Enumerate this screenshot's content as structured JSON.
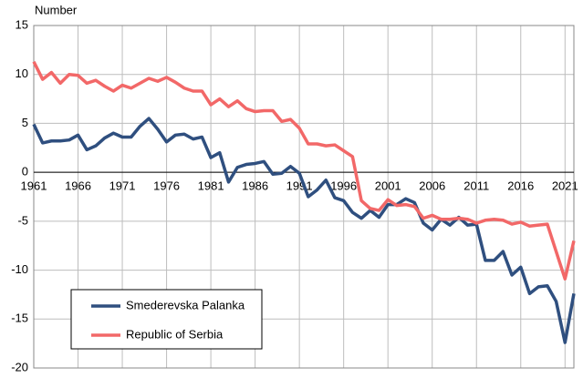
{
  "chart_data": {
    "type": "line",
    "y_label": "Number",
    "x": [
      1961,
      1962,
      1963,
      1964,
      1965,
      1966,
      1967,
      1968,
      1969,
      1970,
      1971,
      1972,
      1973,
      1974,
      1975,
      1976,
      1977,
      1978,
      1979,
      1980,
      1981,
      1982,
      1983,
      1984,
      1985,
      1986,
      1987,
      1988,
      1989,
      1990,
      1991,
      1992,
      1993,
      1994,
      1995,
      1996,
      1997,
      1998,
      1999,
      2000,
      2001,
      2002,
      2003,
      2004,
      2005,
      2006,
      2007,
      2008,
      2009,
      2010,
      2011,
      2012,
      2013,
      2014,
      2015,
      2016,
      2017,
      2018,
      2019,
      2020,
      2021,
      2022
    ],
    "series": [
      {
        "name": "Smederevska Palanka",
        "color": "#2f4f7f",
        "values": [
          4.9,
          3.0,
          3.2,
          3.2,
          3.3,
          3.8,
          2.3,
          2.7,
          3.5,
          4.0,
          3.6,
          3.6,
          4.7,
          5.5,
          4.4,
          3.1,
          3.8,
          3.9,
          3.4,
          3.6,
          1.5,
          2.0,
          -1.0,
          0.5,
          0.8,
          0.9,
          1.1,
          -0.2,
          -0.1,
          0.6,
          -0.1,
          -2.5,
          -1.8,
          -0.8,
          -2.6,
          -2.9,
          -4.1,
          -4.7,
          -3.9,
          -4.6,
          -3.3,
          -3.3,
          -2.7,
          -3.1,
          -5.2,
          -5.9,
          -4.8,
          -5.4,
          -4.6,
          -5.4,
          -5.3,
          -9.0,
          -9.0,
          -8.1,
          -10.5,
          -9.7,
          -12.4,
          -11.7,
          -11.6,
          -13.2,
          -17.4,
          -12.4
        ]
      },
      {
        "name": "Republic of Serbia",
        "color": "#f26868",
        "values": [
          11.3,
          9.5,
          10.2,
          9.1,
          10.0,
          9.9,
          9.1,
          9.4,
          8.8,
          8.3,
          8.9,
          8.6,
          9.1,
          9.6,
          9.3,
          9.7,
          9.2,
          8.6,
          8.3,
          8.3,
          6.9,
          7.5,
          6.7,
          7.3,
          6.5,
          6.2,
          6.3,
          6.3,
          5.2,
          5.4,
          4.5,
          2.9,
          2.9,
          2.7,
          2.8,
          2.2,
          1.6,
          -2.9,
          -3.7,
          -3.9,
          -2.8,
          -3.4,
          -3.3,
          -3.5,
          -4.7,
          -4.4,
          -4.8,
          -4.8,
          -4.7,
          -4.8,
          -5.2,
          -4.9,
          -4.8,
          -4.9,
          -5.3,
          -5.1,
          -5.5,
          -5.4,
          -5.3,
          -8.1,
          -10.9,
          -7.0
        ]
      }
    ],
    "xlim": [
      1961,
      2022
    ],
    "xticks": [
      1961,
      1966,
      1971,
      1976,
      1981,
      1986,
      1991,
      1996,
      2001,
      2006,
      2011,
      2016,
      2021
    ],
    "ylim": [
      -20,
      15
    ],
    "yticks": [
      -20,
      -15,
      -10,
      -5,
      0,
      5,
      10,
      15
    ],
    "grid": true
  }
}
